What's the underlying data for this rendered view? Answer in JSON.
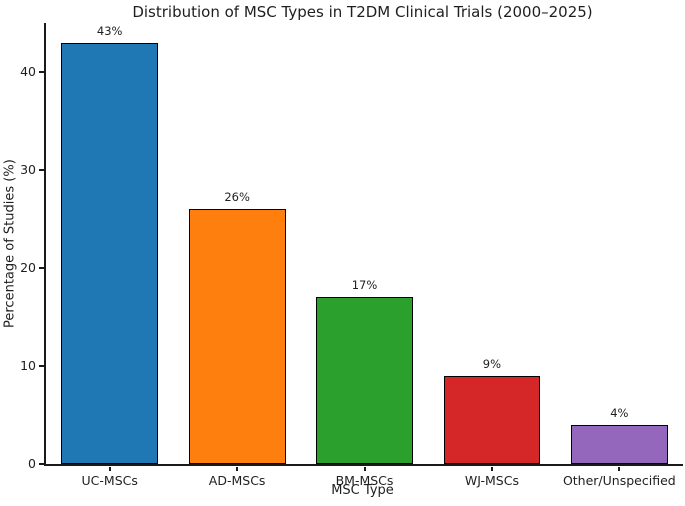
{
  "chart_data": {
    "type": "bar",
    "title": "Distribution of MSC Types in T2DM Clinical Trials (2000–2025)",
    "xlabel": "MSC Type",
    "ylabel": "Percentage of Studies (%)",
    "categories": [
      "UC-MSCs",
      "AD-MSCs",
      "BM-MSCs",
      "WJ-MSCs",
      "Other/Unspecified"
    ],
    "values": [
      43,
      26,
      17,
      9,
      4
    ],
    "value_labels": [
      "43%",
      "26%",
      "17%",
      "9%",
      "4%"
    ],
    "bar_colors": [
      "#1f77b4",
      "#ff7f0e",
      "#2ca02c",
      "#d62728",
      "#9467bd"
    ],
    "bar_edge_color": "#000000",
    "ylim": [
      0,
      45
    ],
    "yticks": [
      0,
      10,
      20,
      30,
      40
    ],
    "grid": false,
    "legend": "none",
    "plot_background": "#ffffff"
  }
}
